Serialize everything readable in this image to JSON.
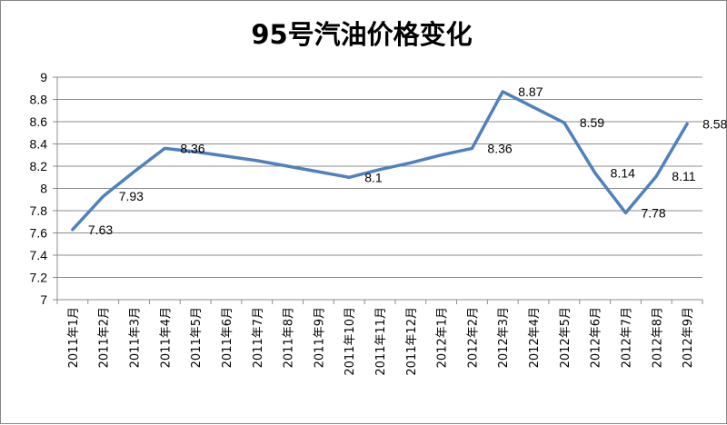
{
  "chart_data": {
    "type": "line",
    "title": "95号汽油价格变化",
    "xlabel": "",
    "ylabel": "",
    "categories": [
      "2011年1月",
      "2011年2月",
      "2011年3月",
      "2011年4月",
      "2011年5月",
      "2011年6月",
      "2011年7月",
      "2011年8月",
      "2011年9月",
      "2011年10月",
      "2011年11月",
      "2011年12月",
      "2012年1月",
      "2012年2月",
      "2012年3月",
      "2012年4月",
      "2012年5月",
      "2012年6月",
      "2012年7月",
      "2012年8月",
      "2012年9月"
    ],
    "series": [
      {
        "values": [
          7.63,
          7.93,
          8.15,
          8.36,
          8.33,
          8.29,
          8.25,
          8.2,
          8.15,
          8.1,
          8.17,
          8.23,
          8.3,
          8.36,
          8.87,
          8.73,
          8.59,
          8.14,
          7.78,
          8.11,
          8.58
        ],
        "color": "#4f81bd"
      }
    ],
    "data_labels": [
      {
        "index": 0,
        "text": "7.63"
      },
      {
        "index": 1,
        "text": "7.93"
      },
      {
        "index": 3,
        "text": "8.36"
      },
      {
        "index": 9,
        "text": "8.1"
      },
      {
        "index": 13,
        "text": "8.36"
      },
      {
        "index": 14,
        "text": "8.87"
      },
      {
        "index": 16,
        "text": "8.59"
      },
      {
        "index": 17,
        "text": "8.14"
      },
      {
        "index": 18,
        "text": "7.78"
      },
      {
        "index": 19,
        "text": "8.11"
      },
      {
        "index": 20,
        "text": "8.58"
      }
    ],
    "ylim": [
      7,
      9
    ],
    "yticks": [
      "7",
      "7.2",
      "7.4",
      "7.6",
      "7.8",
      "8",
      "8.2",
      "8.4",
      "8.6",
      "8.8",
      "9"
    ],
    "grid": true,
    "legend": "none"
  }
}
